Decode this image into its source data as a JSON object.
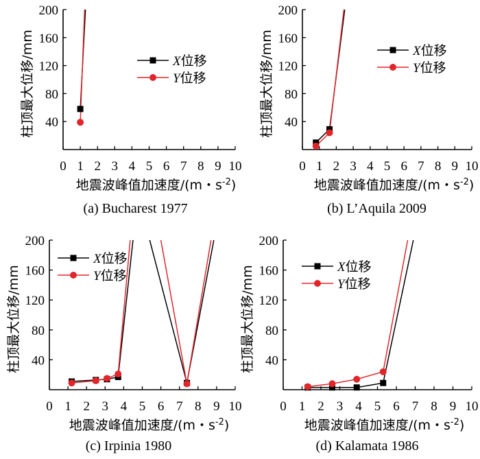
{
  "colors": {
    "x_series": "#000000",
    "y_series": "#e0262b"
  },
  "chart_data": [
    {
      "type": "line",
      "caption": "(a) Bucharest 1977",
      "xlabel": "地震波峰值加速度/(m・s",
      "xlabel_sup": "-2",
      "xlabel_end": ")",
      "ylabel": "柱顶最大位移/mm",
      "xlim": [
        0,
        10
      ],
      "ylim": [
        0,
        200
      ],
      "xticks": [
        "0",
        "1",
        "2",
        "3",
        "4",
        "5",
        "6",
        "7",
        "8",
        "9",
        "10"
      ],
      "yticks": [
        "40",
        "80",
        "120",
        "160",
        "200"
      ],
      "legend": {
        "position": "right-middle",
        "x_name_italic": "X",
        "x_name": "位移",
        "y_name_italic": "Y",
        "y_name": "位移"
      },
      "series": [
        {
          "name": "X位移",
          "marker": "square",
          "x": [
            1,
            1.3
          ],
          "y": [
            58,
            200
          ]
        },
        {
          "name": "Y位移",
          "marker": "circle",
          "x": [
            1,
            1.25
          ],
          "y": [
            39,
            200
          ]
        }
      ]
    },
    {
      "type": "line",
      "caption": "(b) L’Aquila 2009",
      "xlabel": "地震波峰值加速度/(m・s",
      "xlabel_sup": "-2",
      "xlabel_end": ")",
      "ylabel": "柱顶最大位移/mm",
      "xlim": [
        0,
        10
      ],
      "ylim": [
        0,
        200
      ],
      "xticks": [
        "0",
        "1",
        "2",
        "3",
        "4",
        "5",
        "6",
        "7",
        "8",
        "9",
        "10"
      ],
      "yticks": [
        "40",
        "80",
        "120",
        "160",
        "200"
      ],
      "legend": {
        "position": "top-right",
        "x_name_italic": "X",
        "x_name": "位移",
        "y_name_italic": "Y",
        "y_name": "位移"
      },
      "series": [
        {
          "name": "X位移",
          "marker": "square",
          "x": [
            0.8,
            1.6,
            2.5
          ],
          "y": [
            10,
            29,
            200
          ]
        },
        {
          "name": "Y位移",
          "marker": "circle",
          "x": [
            0.8,
            1.6,
            2.45
          ],
          "y": [
            5,
            24,
            200
          ]
        }
      ]
    },
    {
      "type": "line",
      "caption": "(c) Irpinia 1980",
      "xlabel": "地震波峰值加速度/(m・s",
      "xlabel_sup": "-2",
      "xlabel_end": ")",
      "ylabel": "柱顶最大位移/mm",
      "xlim": [
        0,
        10
      ],
      "ylim": [
        0,
        200
      ],
      "xticks": [
        "0",
        "1",
        "2",
        "3",
        "4",
        "5",
        "6",
        "7",
        "8",
        "9",
        "10"
      ],
      "yticks": [
        "40",
        "80",
        "120",
        "160",
        "200"
      ],
      "legend": {
        "position": "top-left",
        "x_name_italic": "X",
        "x_name": "位移",
        "y_name_italic": "Y",
        "y_name": "位移"
      },
      "series": [
        {
          "name": "X位移",
          "marker": "square",
          "x": [
            1.2,
            2.5,
            3.1,
            3.7,
            4.5
          ],
          "y": [
            11,
            13,
            14,
            17,
            200
          ]
        },
        {
          "name": "Y位移",
          "marker": "circle",
          "x": [
            1.2,
            2.5,
            3.1,
            3.7,
            4.35
          ],
          "y": [
            9,
            12,
            15,
            21,
            200
          ]
        },
        {
          "name": "X位移",
          "marker": "square",
          "x": [
            5.4,
            7.4,
            8.85
          ],
          "y": [
            200,
            9,
            200
          ]
        },
        {
          "name": "Y位移",
          "marker": "circle",
          "x": [
            6.0,
            7.4,
            8.7
          ],
          "y": [
            200,
            8,
            200
          ]
        }
      ]
    },
    {
      "type": "line",
      "caption": "(d) Kalamata 1986",
      "xlabel": "地震波峰值加速度/(m・s",
      "xlabel_sup": "-2",
      "xlabel_end": ")",
      "ylabel": "柱顶最大位移/mm",
      "xlim": [
        0,
        10
      ],
      "ylim": [
        0,
        200
      ],
      "xticks": [
        "0",
        "1",
        "2",
        "3",
        "4",
        "5",
        "6",
        "7",
        "8",
        "9",
        "10"
      ],
      "yticks": [
        "40",
        "80",
        "120",
        "160",
        "200"
      ],
      "legend": {
        "position": "top-center",
        "x_name_italic": "X",
        "x_name": "位移",
        "y_name_italic": "Y",
        "y_name": "位移"
      },
      "series": [
        {
          "name": "X位移",
          "marker": "square",
          "x": [
            1.3,
            2.6,
            3.9,
            5.3,
            6.9
          ],
          "y": [
            3,
            3,
            3,
            9,
            200
          ]
        },
        {
          "name": "Y位移",
          "marker": "circle",
          "x": [
            1.3,
            2.6,
            3.9,
            5.3,
            6.6
          ],
          "y": [
            4,
            8,
            14,
            24,
            200
          ]
        }
      ]
    }
  ]
}
